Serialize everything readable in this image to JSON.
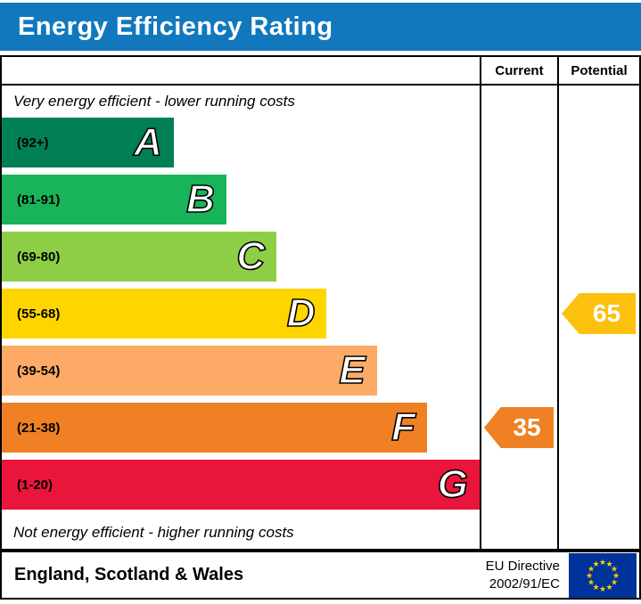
{
  "header": {
    "title": "Energy Efficiency Rating",
    "bg_color": "#1278be",
    "text_color": "#ffffff"
  },
  "columns": {
    "current": "Current",
    "potential": "Potential"
  },
  "chart_data": {
    "type": "bar",
    "title": "Energy Efficiency Rating",
    "categories": [
      "A",
      "B",
      "C",
      "D",
      "E",
      "F",
      "G"
    ],
    "band_ranges": [
      "(92+)",
      "(81-91)",
      "(69-80)",
      "(55-68)",
      "(39-54)",
      "(21-38)",
      "(1-20)"
    ],
    "band_colors": [
      "#008054",
      "#19b459",
      "#8dce46",
      "#ffd500",
      "#fcaa65",
      "#ef8023",
      "#e9153b"
    ],
    "bar_width_percents": [
      36,
      47,
      57.5,
      68,
      78.5,
      89,
      100
    ],
    "top_note": "Very energy efficient - lower running costs",
    "bottom_note": "Not energy efficient - higher running costs",
    "current": {
      "value": 35,
      "band": "F",
      "arrow_color": "#ef8023"
    },
    "potential": {
      "value": 65,
      "band": "D",
      "arrow_color": "#fcc00e"
    }
  },
  "footer": {
    "region": "England, Scotland & Wales",
    "eu_directive": [
      "EU Directive",
      "2002/91/EC"
    ],
    "flag_blue": "#003399",
    "flag_star": "#ffcc00"
  }
}
